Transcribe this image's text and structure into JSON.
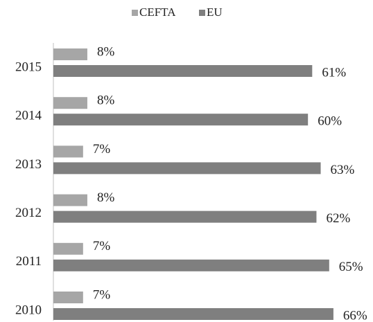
{
  "chart_data": {
    "type": "bar",
    "orientation": "horizontal",
    "categories": [
      "2015",
      "2014",
      "2013",
      "2012",
      "2011",
      "2010"
    ],
    "series": [
      {
        "name": "CEFTA",
        "color": "#a6a6a6",
        "values": [
          8,
          8,
          7,
          8,
          7,
          7
        ],
        "value_labels": [
          "8%",
          "8%",
          "7%",
          "8%",
          "7%",
          "7%"
        ]
      },
      {
        "name": "EU",
        "color": "#7f7f7f",
        "values": [
          61,
          60,
          63,
          62,
          65,
          66
        ],
        "value_labels": [
          "61%",
          "60%",
          "63%",
          "62%",
          "65%",
          "66%"
        ]
      }
    ],
    "legend": "top"
  }
}
